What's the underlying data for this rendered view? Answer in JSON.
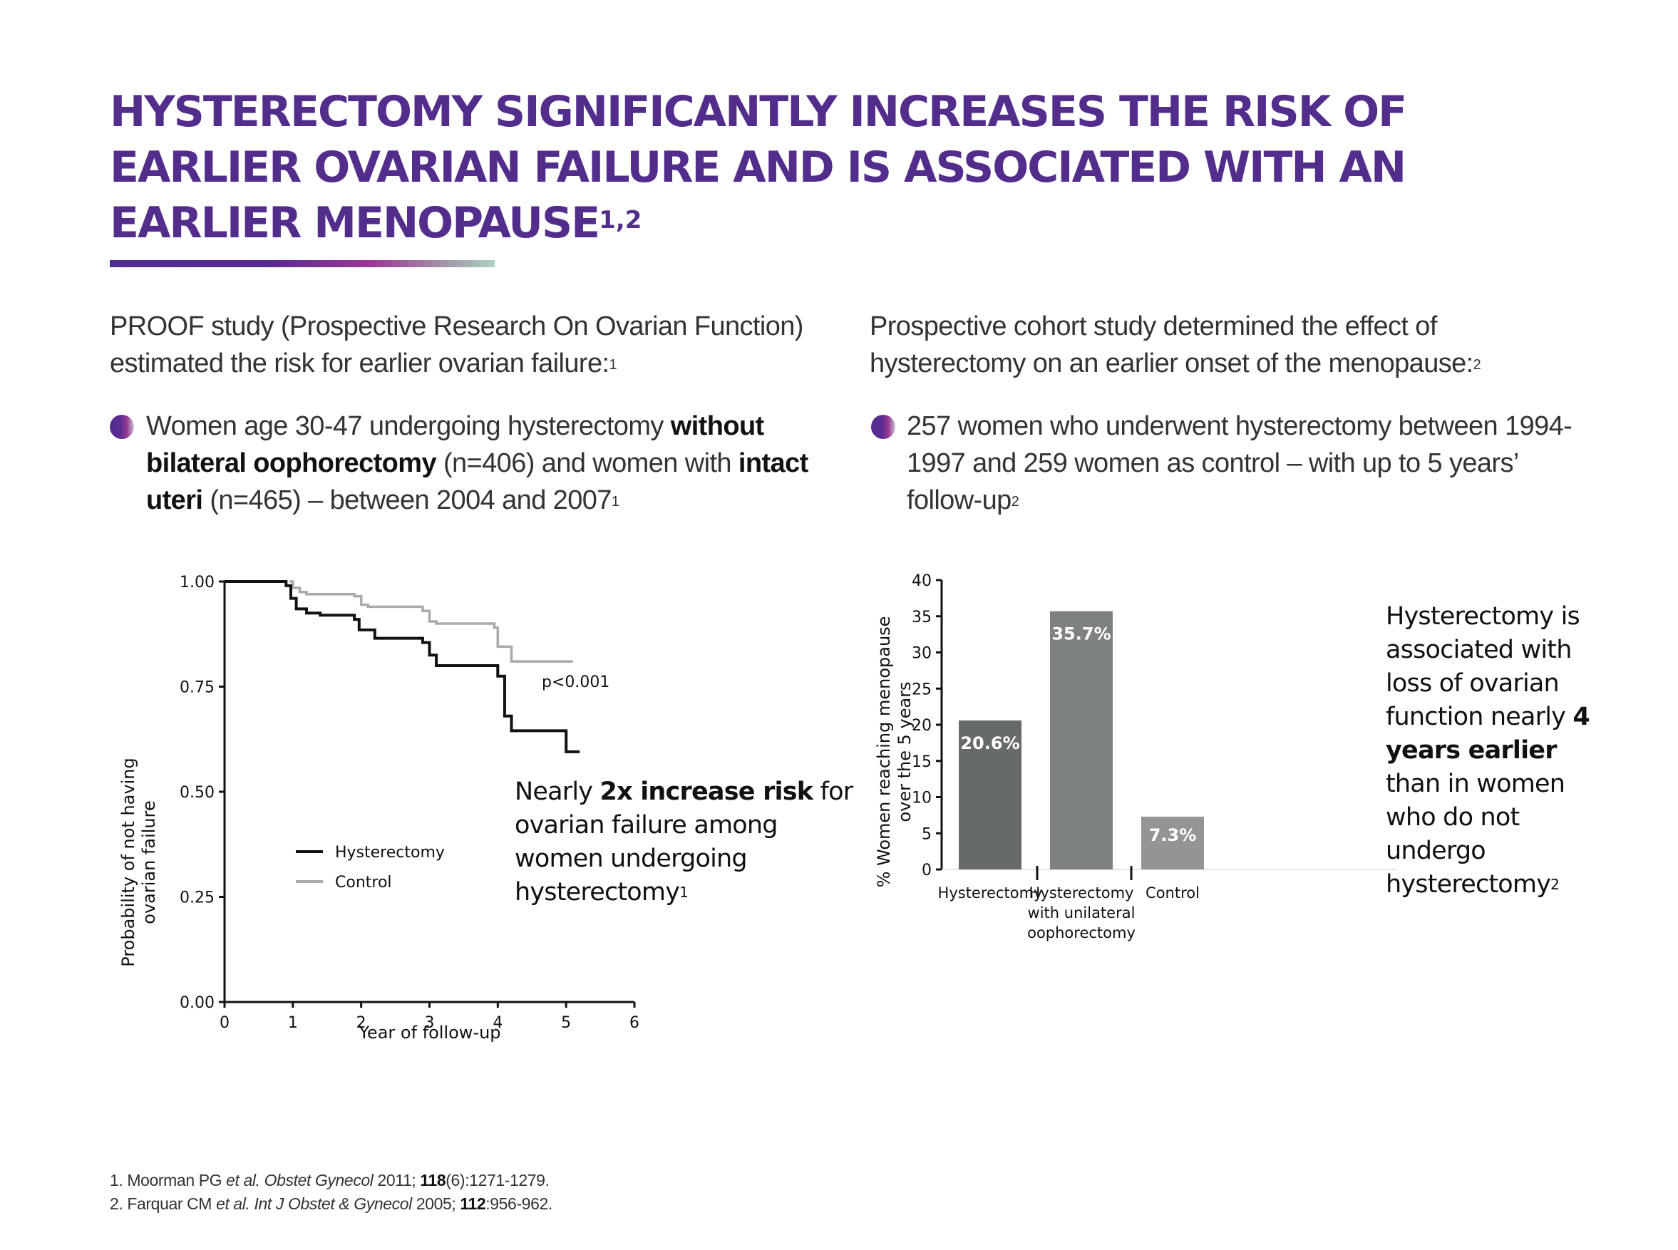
{
  "header": {
    "title": "Hysterectomy significantly increases the risk of earlier ovarian failure and is associated with an earlier menopause",
    "title_sup": "1,2",
    "accent_color": "#532d8c"
  },
  "left": {
    "intro": "PROOF study (Prospective Research On Ovarian Function) estimated the risk for earlier ovarian failure:",
    "intro_sup": "1",
    "bullet": {
      "t1": "Women age 30-47 undergoing hysterectomy ",
      "b1": "without bilateral oophorectomy",
      "t2": " (n=406) and women with ",
      "b2": "intact uteri",
      "t3": " (n=465) –  between 2004 and 2007",
      "sup": "1"
    },
    "callout": {
      "t1": "Nearly ",
      "b1": "2x increase risk",
      "t2": " for ovarian failure among women undergoing hysterectomy",
      "sup": "1"
    }
  },
  "right": {
    "intro": "Prospective cohort study determined the effect of hysterectomy on an earlier onset of the menopause:",
    "intro_sup": "2",
    "bullet": {
      "t1": "257 women who underwent hysterectomy between 1994-1997 and   259 women as control – with up to 5 years’ follow-up",
      "sup": "2"
    },
    "callout": {
      "t1": "Hysterectomy is associated with loss of ovarian function nearly ",
      "b1": "4 years earlier",
      "t2": " than in women who do not undergo hysterectomy",
      "sup": "2"
    }
  },
  "references": [
    {
      "num": "1. ",
      "author": "Moorman PG ",
      "etal": "et al.",
      "journal": " Obstet Gynecol",
      "year": " 2011; ",
      "vol": "118",
      "pages": "(6):1271-1279."
    },
    {
      "num": "2. ",
      "author": "Farquar CM ",
      "etal": "et al.",
      "journal": " Int J Obstet & Gynecol",
      "year": " 2005; ",
      "vol": "112",
      "pages": ":956-962."
    }
  ],
  "chart_data": [
    {
      "type": "line",
      "subtype": "kaplan-meier step",
      "title": "",
      "xlabel": "Year of follow-up",
      "ylabel": "Probability of not having ovarian failure",
      "ylabel_lines": [
        "Probability of not having",
        "ovarian failure"
      ],
      "xlim": [
        0,
        6
      ],
      "ylim": [
        0,
        1
      ],
      "x_ticks": [
        "0",
        "1",
        "2",
        "3",
        "4",
        "5",
        "6"
      ],
      "y_ticks": [
        "0.00",
        "0.25",
        "0.50",
        "0.75",
        "1.00"
      ],
      "annotation": "p<0.001",
      "legend": {
        "position": "bottom-left",
        "entries": [
          "Hysterectomy",
          "Control"
        ]
      },
      "series": [
        {
          "name": "Hysterectomy",
          "color": "#111111",
          "points": [
            [
              0,
              1.0
            ],
            [
              0.9,
              1.0
            ],
            [
              0.9,
              0.99
            ],
            [
              0.97,
              0.99
            ],
            [
              0.97,
              0.96
            ],
            [
              1.05,
              0.96
            ],
            [
              1.05,
              0.935
            ],
            [
              1.2,
              0.935
            ],
            [
              1.2,
              0.925
            ],
            [
              1.4,
              0.925
            ],
            [
              1.4,
              0.92
            ],
            [
              1.9,
              0.92
            ],
            [
              1.9,
              0.91
            ],
            [
              1.97,
              0.91
            ],
            [
              1.97,
              0.885
            ],
            [
              2.2,
              0.885
            ],
            [
              2.2,
              0.865
            ],
            [
              2.9,
              0.865
            ],
            [
              2.9,
              0.855
            ],
            [
              3.0,
              0.855
            ],
            [
              3.0,
              0.825
            ],
            [
              3.1,
              0.825
            ],
            [
              3.1,
              0.8
            ],
            [
              4.0,
              0.8
            ],
            [
              4.0,
              0.775
            ],
            [
              4.1,
              0.775
            ],
            [
              4.1,
              0.68
            ],
            [
              4.2,
              0.68
            ],
            [
              4.2,
              0.645
            ],
            [
              5.0,
              0.645
            ],
            [
              5.0,
              0.595
            ],
            [
              5.2,
              0.595
            ]
          ]
        },
        {
          "name": "Control",
          "color": "#aaaaaa",
          "points": [
            [
              0.95,
              1.0
            ],
            [
              1.0,
              1.0
            ],
            [
              1.0,
              0.985
            ],
            [
              1.1,
              0.985
            ],
            [
              1.1,
              0.975
            ],
            [
              1.2,
              0.975
            ],
            [
              1.2,
              0.97
            ],
            [
              1.9,
              0.97
            ],
            [
              1.9,
              0.965
            ],
            [
              2.0,
              0.965
            ],
            [
              2.0,
              0.945
            ],
            [
              2.1,
              0.945
            ],
            [
              2.1,
              0.94
            ],
            [
              2.9,
              0.94
            ],
            [
              2.9,
              0.93
            ],
            [
              3.0,
              0.93
            ],
            [
              3.0,
              0.905
            ],
            [
              3.1,
              0.905
            ],
            [
              3.1,
              0.9
            ],
            [
              3.95,
              0.9
            ],
            [
              3.95,
              0.89
            ],
            [
              4.0,
              0.89
            ],
            [
              4.0,
              0.845
            ],
            [
              4.2,
              0.845
            ],
            [
              4.2,
              0.81
            ],
            [
              5.1,
              0.81
            ]
          ]
        }
      ]
    },
    {
      "type": "bar",
      "title": "",
      "xlabel": "",
      "ylabel": "% Women reaching menopause over the 5 years",
      "ylabel_lines": [
        "% Women reaching menopause",
        "over the 5 years"
      ],
      "ylim": [
        0,
        40
      ],
      "y_ticks": [
        "0",
        "5",
        "10",
        "15",
        "20",
        "25",
        "30",
        "35",
        "40"
      ],
      "categories": [
        "Hysterectomy",
        "Hysterectomy with unilateral oophorectomy",
        "Control"
      ],
      "category_lines": [
        [
          "Hysterectomy"
        ],
        [
          "Hysterectomy",
          "with unilateral",
          "oophorectomy"
        ],
        [
          "Control"
        ]
      ],
      "values": [
        20.6,
        35.7,
        7.3
      ],
      "data_labels": [
        "20.6%",
        "35.7%",
        "7.3%"
      ],
      "colors": [
        "#676a6b",
        "#7e8182",
        "#939494"
      ]
    }
  ]
}
